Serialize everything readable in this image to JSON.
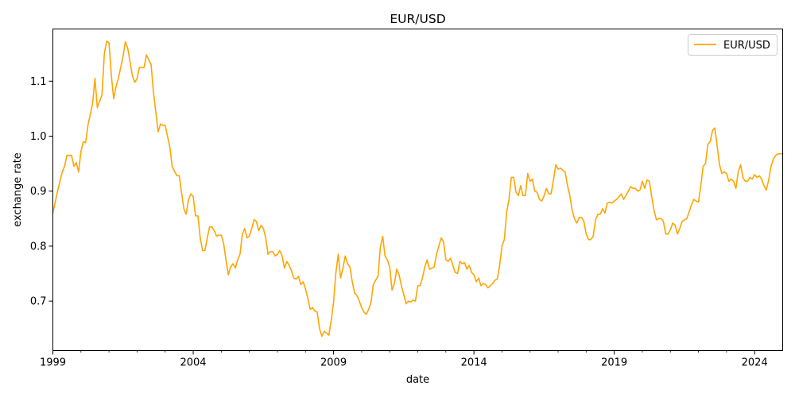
{
  "chart_data": {
    "type": "line",
    "title": "EUR/USD",
    "xlabel": "date",
    "ylabel": "exchange rate",
    "xlim": [
      "1999-01",
      "2025-01"
    ],
    "ylim": [
      0.61,
      1.195
    ],
    "x_major_ticks": [
      "1999",
      "2004",
      "2009",
      "2014",
      "2019",
      "2024"
    ],
    "x_minor_tick_years": [
      2000,
      2001,
      2002,
      2003,
      2005,
      2006,
      2007,
      2008,
      2010,
      2011,
      2012,
      2013,
      2015,
      2016,
      2017,
      2018,
      2020,
      2021,
      2022,
      2023
    ],
    "y_ticks": [
      0.7,
      0.8,
      0.9,
      1.0,
      1.1
    ],
    "y_tick_labels": [
      "0.7",
      "0.8",
      "0.9",
      "1.0",
      "1.1"
    ],
    "grid": false,
    "legend": {
      "position": "top-right",
      "entries": [
        "EUR/USD"
      ]
    },
    "line_color": "#ffa500",
    "series": [
      {
        "name": "EUR/USD",
        "x": [
          "1999-01",
          "1999-03",
          "1999-05",
          "1999-06",
          "1999-07",
          "1999-09",
          "1999-10",
          "1999-11",
          "1999-12",
          "2000-01",
          "2000-02",
          "2000-03",
          "2000-04",
          "2000-06",
          "2000-07",
          "2000-08",
          "2000-10",
          "2000-11",
          "2000-12",
          "2001-01",
          "2001-02",
          "2001-03",
          "2001-04",
          "2001-05",
          "2001-06",
          "2001-07",
          "2001-08",
          "2001-09",
          "2001-11",
          "2001-12",
          "2002-01",
          "2002-02",
          "2002-04",
          "2002-05",
          "2002-07",
          "2002-08",
          "2002-10",
          "2002-11",
          "2002-12",
          "2003-01",
          "2003-03",
          "2003-04",
          "2003-06",
          "2003-07",
          "2003-09",
          "2003-10",
          "2003-11",
          "2003-12",
          "2004-01",
          "2004-02",
          "2004-03",
          "2004-04",
          "2004-05",
          "2004-06",
          "2004-07",
          "2004-08",
          "2004-09",
          "2004-10",
          "2004-11",
          "2004-12",
          "2005-01",
          "2005-02",
          "2005-03",
          "2005-04",
          "2005-05",
          "2005-06",
          "2005-07",
          "2005-08",
          "2005-09",
          "2005-10",
          "2005-11",
          "2005-12",
          "2006-01",
          "2006-02",
          "2006-03",
          "2006-04",
          "2006-05",
          "2006-06",
          "2006-07",
          "2006-08",
          "2006-09",
          "2006-10",
          "2006-11",
          "2006-12",
          "2007-01",
          "2007-02",
          "2007-03",
          "2007-04",
          "2007-05",
          "2007-06",
          "2007-07",
          "2007-08",
          "2007-09",
          "2007-10",
          "2007-11",
          "2007-12",
          "2008-01",
          "2008-02",
          "2008-03",
          "2008-04",
          "2008-05",
          "2008-06",
          "2008-07",
          "2008-08",
          "2008-09",
          "2008-10",
          "2008-11",
          "2008-12",
          "2009-01",
          "2009-02",
          "2009-03",
          "2009-04",
          "2009-05",
          "2009-06",
          "2009-07",
          "2009-08",
          "2009-09",
          "2009-10",
          "2009-11",
          "2009-12",
          "2010-01",
          "2010-02",
          "2010-03",
          "2010-04",
          "2010-05",
          "2010-06",
          "2010-07",
          "2010-08",
          "2010-09",
          "2010-10",
          "2010-11",
          "2010-12",
          "2011-01",
          "2011-02",
          "2011-03",
          "2011-04",
          "2011-05",
          "2011-06",
          "2011-07",
          "2011-08",
          "2011-09",
          "2011-10",
          "2011-11",
          "2011-12",
          "2012-01",
          "2012-02",
          "2012-03",
          "2012-04",
          "2012-05",
          "2012-06",
          "2012-07",
          "2012-08",
          "2012-09",
          "2012-10",
          "2012-11",
          "2012-12",
          "2013-01",
          "2013-02",
          "2013-03",
          "2013-04",
          "2013-05",
          "2013-06",
          "2013-07",
          "2013-08",
          "2013-09",
          "2013-10",
          "2013-11",
          "2013-12",
          "2014-01",
          "2014-02",
          "2014-03",
          "2014-04",
          "2014-05",
          "2014-06",
          "2014-07",
          "2014-08",
          "2014-09",
          "2014-10",
          "2014-11",
          "2014-12",
          "2015-01",
          "2015-02",
          "2015-03",
          "2015-04",
          "2015-05",
          "2015-06",
          "2015-07",
          "2015-08",
          "2015-09",
          "2015-10",
          "2015-11",
          "2015-12",
          "2016-01",
          "2016-02",
          "2016-03",
          "2016-04",
          "2016-05",
          "2016-06",
          "2016-07",
          "2016-08",
          "2016-09",
          "2016-10",
          "2016-11",
          "2016-12",
          "2017-01",
          "2017-02",
          "2017-03",
          "2017-04",
          "2017-05",
          "2017-06",
          "2017-07",
          "2017-08",
          "2017-09",
          "2017-10",
          "2017-11",
          "2017-12",
          "2018-01",
          "2018-02",
          "2018-03",
          "2018-04",
          "2018-05",
          "2018-06",
          "2018-07",
          "2018-08",
          "2018-09",
          "2018-10",
          "2018-11",
          "2018-12",
          "2019-01",
          "2019-02",
          "2019-03",
          "2019-04",
          "2019-05",
          "2019-06",
          "2019-07",
          "2019-08",
          "2019-09",
          "2019-10",
          "2019-11",
          "2019-12",
          "2020-01",
          "2020-02",
          "2020-03",
          "2020-04",
          "2020-05",
          "2020-06",
          "2020-07",
          "2020-08",
          "2020-09",
          "2020-10",
          "2020-11",
          "2020-12",
          "2021-01",
          "2021-02",
          "2021-03",
          "2021-04",
          "2021-05",
          "2021-06",
          "2021-07",
          "2021-08",
          "2021-09",
          "2021-10",
          "2021-11",
          "2021-12",
          "2022-01",
          "2022-02",
          "2022-03",
          "2022-04",
          "2022-05",
          "2022-06",
          "2022-07",
          "2022-08",
          "2022-09",
          "2022-10",
          "2022-11",
          "2022-12",
          "2023-01",
          "2023-02",
          "2023-03",
          "2023-04",
          "2023-05",
          "2023-06",
          "2023-07",
          "2023-08",
          "2023-09",
          "2023-10",
          "2023-11",
          "2023-12",
          "2024-01",
          "2024-02",
          "2024-03",
          "2024-04",
          "2024-05",
          "2024-06",
          "2024-07",
          "2024-08",
          "2024-09",
          "2024-10",
          "2024-11",
          "2024-12",
          "2025-01"
        ],
        "values": [
          0.86,
          0.9,
          0.935,
          0.945,
          0.965,
          0.965,
          0.945,
          0.952,
          0.935,
          0.972,
          0.99,
          0.988,
          1.02,
          1.06,
          1.105,
          1.052,
          1.075,
          1.15,
          1.173,
          1.17,
          1.11,
          1.068,
          1.09,
          1.105,
          1.125,
          1.145,
          1.172,
          1.16,
          1.11,
          1.098,
          1.105,
          1.125,
          1.125,
          1.148,
          1.13,
          1.08,
          1.008,
          1.022,
          1.02,
          1.02,
          0.98,
          0.945,
          0.928,
          0.928,
          0.868,
          0.858,
          0.885,
          0.895,
          0.89,
          0.855,
          0.855,
          0.815,
          0.792,
          0.792,
          0.815,
          0.835,
          0.835,
          0.828,
          0.818,
          0.82,
          0.82,
          0.805,
          0.775,
          0.748,
          0.762,
          0.768,
          0.76,
          0.775,
          0.785,
          0.822,
          0.832,
          0.815,
          0.818,
          0.832,
          0.848,
          0.845,
          0.828,
          0.838,
          0.832,
          0.815,
          0.785,
          0.79,
          0.79,
          0.782,
          0.785,
          0.792,
          0.782,
          0.76,
          0.772,
          0.765,
          0.755,
          0.742,
          0.74,
          0.745,
          0.73,
          0.735,
          0.722,
          0.705,
          0.685,
          0.688,
          0.682,
          0.68,
          0.65,
          0.636,
          0.645,
          0.642,
          0.638,
          0.665,
          0.698,
          0.752,
          0.785,
          0.742,
          0.76,
          0.782,
          0.768,
          0.762,
          0.735,
          0.715,
          0.71,
          0.7,
          0.688,
          0.68,
          0.676,
          0.685,
          0.698,
          0.73,
          0.738,
          0.745,
          0.798,
          0.818,
          0.782,
          0.775,
          0.762,
          0.72,
          0.732,
          0.758,
          0.748,
          0.728,
          0.712,
          0.695,
          0.7,
          0.698,
          0.702,
          0.7,
          0.728,
          0.728,
          0.742,
          0.762,
          0.775,
          0.758,
          0.76,
          0.762,
          0.785,
          0.8,
          0.815,
          0.808,
          0.775,
          0.772,
          0.778,
          0.765,
          0.752,
          0.75,
          0.772,
          0.768,
          0.77,
          0.758,
          0.765,
          0.752,
          0.748,
          0.735,
          0.742,
          0.728,
          0.732,
          0.73,
          0.724,
          0.728,
          0.732,
          0.738,
          0.74,
          0.765,
          0.8,
          0.812,
          0.862,
          0.885,
          0.925,
          0.925,
          0.898,
          0.892,
          0.91,
          0.892,
          0.892,
          0.932,
          0.918,
          0.922,
          0.9,
          0.898,
          0.885,
          0.882,
          0.892,
          0.905,
          0.895,
          0.895,
          0.92,
          0.948,
          0.94,
          0.942,
          0.938,
          0.935,
          0.91,
          0.892,
          0.865,
          0.85,
          0.842,
          0.852,
          0.852,
          0.845,
          0.822,
          0.812,
          0.812,
          0.818,
          0.848,
          0.858,
          0.858,
          0.868,
          0.86,
          0.878,
          0.88,
          0.878,
          0.882,
          0.885,
          0.89,
          0.895,
          0.885,
          0.892,
          0.9,
          0.908,
          0.905,
          0.905,
          0.9,
          0.902,
          0.918,
          0.905,
          0.92,
          0.918,
          0.89,
          0.865,
          0.848,
          0.85,
          0.85,
          0.845,
          0.822,
          0.822,
          0.83,
          0.842,
          0.838,
          0.822,
          0.832,
          0.845,
          0.848,
          0.85,
          0.862,
          0.875,
          0.885,
          0.882,
          0.88,
          0.91,
          0.945,
          0.95,
          0.985,
          0.99,
          1.01,
          1.015,
          0.982,
          0.948,
          0.932,
          0.935,
          0.932,
          0.918,
          0.922,
          0.918,
          0.905,
          0.935,
          0.948,
          0.925,
          0.918,
          0.918,
          0.925,
          0.922,
          0.93,
          0.925,
          0.928,
          0.922,
          0.91,
          0.902,
          0.92,
          0.945,
          0.958,
          0.965,
          0.968,
          0.968,
          0.968
        ]
      }
    ]
  }
}
